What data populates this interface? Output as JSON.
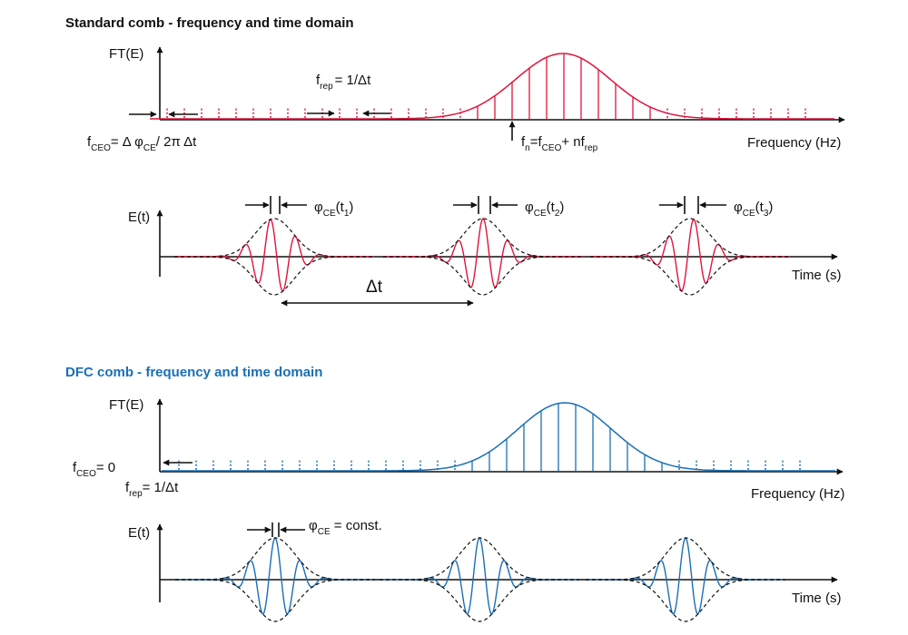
{
  "colors": {
    "standard": "#e0143c",
    "dfc": "#1a6fb5",
    "ink": "#111111",
    "envelope": "#111111"
  },
  "standard": {
    "title": "Standard comb - frequency and time domain",
    "freq": {
      "ylabel": "FT(E)",
      "xlabel": "Frequency (Hz)",
      "frep": {
        "main": "f",
        "sub": "rep",
        "tail": "= 1/Δt"
      },
      "fceo": {
        "main": "f",
        "sub": "CEO",
        "tail": "= Δ φ",
        "sub2": "CE",
        "tail2": "/ 2π Δt"
      },
      "fn": {
        "main": "f",
        "sub": "n",
        "mid": "=f",
        "sub2": "CEO",
        "mid2": "+ nf",
        "sub3": "rep"
      }
    },
    "time": {
      "ylabel": "E(t)",
      "xlabel": "Time (s)",
      "delta_t": "Δt",
      "phases": [
        {
          "main": "φ",
          "sub": "CE",
          "open": "(t",
          "idx": "1",
          "close": ")"
        },
        {
          "main": "φ",
          "sub": "CE",
          "open": "(t",
          "idx": "2",
          "close": ")"
        },
        {
          "main": "φ",
          "sub": "CE",
          "open": "(t",
          "idx": "3",
          "close": ")"
        }
      ]
    }
  },
  "dfc": {
    "title": "DFC comb - frequency and time domain",
    "freq": {
      "ylabel": "FT(E)",
      "xlabel": "Frequency (Hz)",
      "fceo": {
        "main": "f",
        "sub": "CEO",
        "tail": "= 0"
      },
      "frep": {
        "main": "f",
        "sub": "rep",
        "tail": "= 1/Δt"
      }
    },
    "time": {
      "ylabel": "E(t)",
      "xlabel": "Time (s)",
      "phase": {
        "main": "φ",
        "sub": "CE",
        "tail": " = const."
      }
    }
  }
}
